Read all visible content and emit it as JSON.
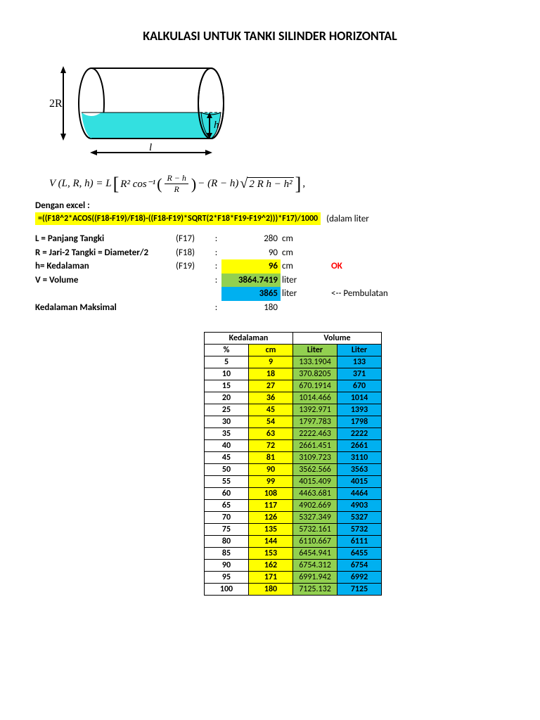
{
  "title": "KALKULASI UNTUK TANKI SILINDER HORIZONTAL",
  "diagram": {
    "label_2R": "2R",
    "label_h": "h",
    "label_l": "l",
    "water_color": "#33e0e0",
    "outline_color": "#000000"
  },
  "formula_text": {
    "lhs": "V (L, R, h) = L",
    "r2cos": "R² cos⁻¹",
    "frac_num": "R − h",
    "frac_den": "R",
    "mid": " − (R − h)",
    "sqrt_body": "2 R h − h²",
    "tail": ","
  },
  "excel": {
    "label": "Dengan excel :",
    "formula": "=((F18^2*ACOS((F18-F19)/F18)-((F18-F19)*SQRT(2*F18*F19-F19^2)))*F17)/1000",
    "note": "(dalam liter"
  },
  "params": {
    "L": {
      "label": "L = Panjang Tangki",
      "ref": "(F17)",
      "val": "280",
      "unit": "cm"
    },
    "R": {
      "label": "R = Jari-2 Tangki = Diameter/2",
      "ref": "(F18)",
      "val": "90",
      "unit": "cm"
    },
    "h": {
      "label": "h= Kedalaman",
      "ref": "(F19)",
      "val": "96",
      "unit": "cm",
      "ok": "OK"
    },
    "V": {
      "label": "V = Volume",
      "val": "3864.7419",
      "unit": "liter"
    },
    "Vr": {
      "val": "3865",
      "unit": "liter",
      "note": "<-- Pembulatan"
    },
    "Kmax": {
      "label": "Kedalaman Maksimal",
      "val": "180"
    }
  },
  "table": {
    "header_depth": "Kedalaman",
    "header_vol": "Volume",
    "sub_pct": "%",
    "sub_cm": "cm",
    "sub_l1": "Liter",
    "sub_l2": "Liter",
    "rows": [
      {
        "pct": "5",
        "cm": "9",
        "l1": "133.1904",
        "l2": "133"
      },
      {
        "pct": "10",
        "cm": "18",
        "l1": "370.8205",
        "l2": "371"
      },
      {
        "pct": "15",
        "cm": "27",
        "l1": "670.1914",
        "l2": "670"
      },
      {
        "pct": "20",
        "cm": "36",
        "l1": "1014.466",
        "l2": "1014"
      },
      {
        "pct": "25",
        "cm": "45",
        "l1": "1392.971",
        "l2": "1393"
      },
      {
        "pct": "30",
        "cm": "54",
        "l1": "1797.783",
        "l2": "1798"
      },
      {
        "pct": "35",
        "cm": "63",
        "l1": "2222.463",
        "l2": "2222"
      },
      {
        "pct": "40",
        "cm": "72",
        "l1": "2661.451",
        "l2": "2661"
      },
      {
        "pct": "45",
        "cm": "81",
        "l1": "3109.723",
        "l2": "3110"
      },
      {
        "pct": "50",
        "cm": "90",
        "l1": "3562.566",
        "l2": "3563"
      },
      {
        "pct": "55",
        "cm": "99",
        "l1": "4015.409",
        "l2": "4015"
      },
      {
        "pct": "60",
        "cm": "108",
        "l1": "4463.681",
        "l2": "4464"
      },
      {
        "pct": "65",
        "cm": "117",
        "l1": "4902.669",
        "l2": "4903"
      },
      {
        "pct": "70",
        "cm": "126",
        "l1": "5327.349",
        "l2": "5327"
      },
      {
        "pct": "75",
        "cm": "135",
        "l1": "5732.161",
        "l2": "5732"
      },
      {
        "pct": "80",
        "cm": "144",
        "l1": "6110.667",
        "l2": "6111"
      },
      {
        "pct": "85",
        "cm": "153",
        "l1": "6454.941",
        "l2": "6455"
      },
      {
        "pct": "90",
        "cm": "162",
        "l1": "6754.312",
        "l2": "6754"
      },
      {
        "pct": "95",
        "cm": "171",
        "l1": "6991.942",
        "l2": "6992"
      },
      {
        "pct": "100",
        "cm": "180",
        "l1": "7125.132",
        "l2": "7125"
      }
    ]
  }
}
